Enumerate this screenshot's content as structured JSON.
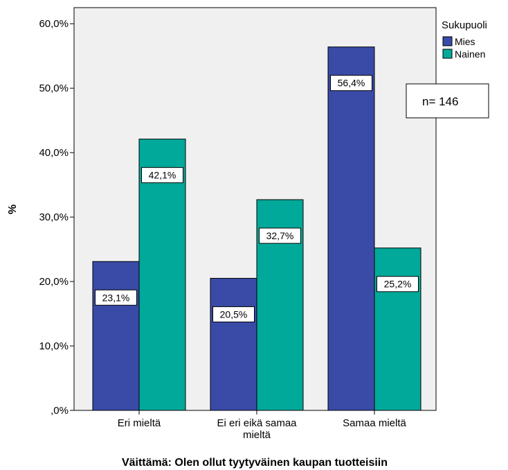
{
  "chart_data": {
    "type": "bar",
    "categories": [
      "Eri mieltä",
      "Ei eri eikä samaa mieltä",
      "Samaa mieltä"
    ],
    "series": [
      {
        "name": "Mies",
        "values": [
          23.1,
          20.5,
          56.4
        ],
        "labels": [
          "23,1%",
          "20,5%",
          "56,4%"
        ],
        "color": "#3a4ba7"
      },
      {
        "name": "Nainen",
        "values": [
          42.1,
          32.7,
          25.2
        ],
        "labels": [
          "42,1%",
          "32,7%",
          "25,2%"
        ],
        "color": "#00a99a"
      }
    ],
    "xlabel": "Väittämä: Olen ollut tyytyväinen kaupan tuotteisiin",
    "ylabel": "%",
    "ylim": [
      0,
      62.5
    ],
    "yticks": [
      0,
      10,
      20,
      30,
      40,
      50,
      60
    ],
    "ytick_labels": [
      ",0%",
      "10,0%",
      "20,0%",
      "30,0%",
      "40,0%",
      "50,0%",
      "60,0%"
    ],
    "legend": {
      "title": "Sukupuoli",
      "position": "top-right, outside plot"
    },
    "annotation": "n= 146",
    "plot_background": "#f0f0f0",
    "grid": false
  }
}
